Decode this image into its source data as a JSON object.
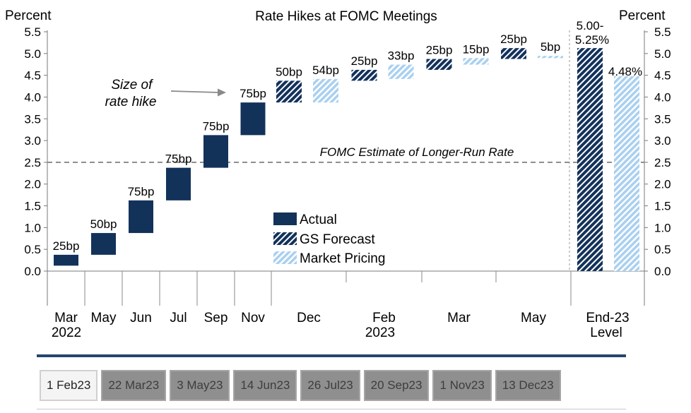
{
  "chart_data": {
    "type": "bar",
    "subtype": "waterfall",
    "title": "Rate Hikes at FOMC Meetings",
    "ylabel_left": "Percent",
    "ylabel_right": "Percent",
    "ylim": [
      0,
      5.5
    ],
    "yticks": [
      "0.0",
      "0.5",
      "1.0",
      "1.5",
      "2.0",
      "2.5",
      "3.0",
      "3.5",
      "4.0",
      "4.5",
      "5.0",
      "5.5"
    ],
    "categories": [
      {
        "label": "Mar",
        "sublabel": "2022"
      },
      {
        "label": "May",
        "sublabel": ""
      },
      {
        "label": "Jun",
        "sublabel": ""
      },
      {
        "label": "Jul",
        "sublabel": ""
      },
      {
        "label": "Sep",
        "sublabel": ""
      },
      {
        "label": "Nov",
        "sublabel": ""
      },
      {
        "label": "Dec",
        "sublabel": ""
      },
      {
        "label": "Feb",
        "sublabel": "2023"
      },
      {
        "label": "Mar",
        "sublabel": ""
      },
      {
        "label": "May",
        "sublabel": ""
      },
      {
        "label": "End-23",
        "sublabel": "Level"
      }
    ],
    "bars": [
      {
        "series": "Actual",
        "category": 0,
        "start": 0.125,
        "end": 0.375,
        "label": "25bp"
      },
      {
        "series": "Actual",
        "category": 1,
        "start": 0.375,
        "end": 0.875,
        "label": "50bp"
      },
      {
        "series": "Actual",
        "category": 2,
        "start": 0.875,
        "end": 1.625,
        "label": "75bp"
      },
      {
        "series": "Actual",
        "category": 3,
        "start": 1.625,
        "end": 2.375,
        "label": "75bp"
      },
      {
        "series": "Actual",
        "category": 4,
        "start": 2.375,
        "end": 3.125,
        "label": "75bp"
      },
      {
        "series": "Actual",
        "category": 5,
        "start": 3.125,
        "end": 3.875,
        "label": "75bp"
      },
      {
        "series": "GS Forecast",
        "category": 6,
        "start": 3.875,
        "end": 4.375,
        "label": "50bp"
      },
      {
        "series": "Market Pricing",
        "category": 6,
        "start": 3.875,
        "end": 4.415,
        "label": "54bp"
      },
      {
        "series": "GS Forecast",
        "category": 7,
        "start": 4.375,
        "end": 4.625,
        "label": "25bp"
      },
      {
        "series": "Market Pricing",
        "category": 7,
        "start": 4.415,
        "end": 4.745,
        "label": "33bp"
      },
      {
        "series": "GS Forecast",
        "category": 8,
        "start": 4.625,
        "end": 4.875,
        "label": "25bp"
      },
      {
        "series": "Market Pricing",
        "category": 8,
        "start": 4.745,
        "end": 4.895,
        "label": "15bp"
      },
      {
        "series": "GS Forecast",
        "category": 9,
        "start": 4.875,
        "end": 5.125,
        "label": "25bp"
      },
      {
        "series": "Market Pricing",
        "category": 9,
        "start": 4.895,
        "end": 4.945,
        "label": "5bp"
      },
      {
        "series": "GS Forecast",
        "category": 10,
        "start": 0,
        "end": 5.125,
        "label": "5.00-\n5.25%"
      },
      {
        "series": "Market Pricing",
        "category": 10,
        "start": 0,
        "end": 4.48,
        "label": "4.48%"
      }
    ],
    "reference_line": {
      "value": 2.5,
      "label": "FOMC Estimate of Longer-Run Rate",
      "style": "dashed"
    },
    "annotation": {
      "text": "Size of\nrate hike"
    },
    "legend": [
      {
        "name": "Actual",
        "color": "#13325a",
        "pattern": "solid"
      },
      {
        "name": "GS Forecast",
        "color": "#13325a",
        "pattern": "hatched"
      },
      {
        "name": "Market Pricing",
        "color": "#a9d0ef",
        "pattern": "hatched"
      }
    ],
    "legend_position": "center-bottom",
    "grid": false,
    "colors": {
      "actual": "#13325a",
      "market": "#a9d0ef",
      "refline": "#7f7f7f"
    }
  },
  "tabs": [
    {
      "label": "1 Feb23",
      "active": true
    },
    {
      "label": "22 Mar23",
      "active": false
    },
    {
      "label": "3 May23",
      "active": false
    },
    {
      "label": "14 Jun23",
      "active": false
    },
    {
      "label": "26 Jul23",
      "active": false
    },
    {
      "label": "20 Sep23",
      "active": false
    },
    {
      "label": "1 Nov23",
      "active": false
    },
    {
      "label": "13 Dec23",
      "active": false
    }
  ]
}
